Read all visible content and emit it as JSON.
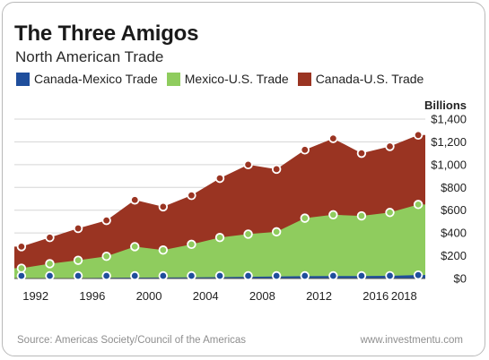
{
  "title": "The Three Amigos",
  "subtitle": "North American Trade",
  "footer": {
    "source": "Source: Americas Society/Council of the Americas",
    "site": "www.investmentu.com"
  },
  "chart_data": {
    "type": "area",
    "title": "The Three Amigos",
    "subtitle": "North American Trade",
    "y_unit_label": "Billions",
    "ylim": [
      0,
      1400
    ],
    "xlim": [
      1990.5,
      2019.5
    ],
    "y_ticks": [
      0,
      200,
      400,
      600,
      800,
      1000,
      1200,
      1400
    ],
    "y_tick_labels": [
      "$0",
      "$200",
      "$400",
      "$600",
      "$800",
      "$1,000",
      "$1,200",
      "$1,400"
    ],
    "x_ticks": [
      1992,
      1996,
      2000,
      2004,
      2008,
      2012,
      2016,
      2018
    ],
    "x_tick_labels": [
      "1992",
      "1996",
      "2000",
      "2004",
      "2008",
      "2012",
      "2016",
      "2018"
    ],
    "x": [
      1991,
      1993,
      1995,
      1997,
      1999,
      2001,
      2003,
      2005,
      2007,
      2009,
      2011,
      2013,
      2015,
      2017,
      2019
    ],
    "stacked": true,
    "grid": true,
    "legend_position": "top",
    "series": [
      {
        "name": "Canada-Mexico Trade",
        "color": "#1f4e9c",
        "values": [
          2,
          3,
          4,
          6,
          8,
          9,
          10,
          12,
          15,
          18,
          21,
          22,
          22,
          24,
          30
        ]
      },
      {
        "name": "Mexico-U.S. Trade",
        "color": "#8fcc5e",
        "values": [
          90,
          130,
          160,
          195,
          280,
          250,
          300,
          360,
          390,
          410,
          530,
          560,
          550,
          580,
          650
        ]
      },
      {
        "name": "Canada-U.S. Trade",
        "color": "#9a3422",
        "values": [
          280,
          360,
          440,
          510,
          690,
          630,
          730,
          880,
          1000,
          960,
          1130,
          1230,
          1100,
          1160,
          1260
        ]
      }
    ]
  }
}
